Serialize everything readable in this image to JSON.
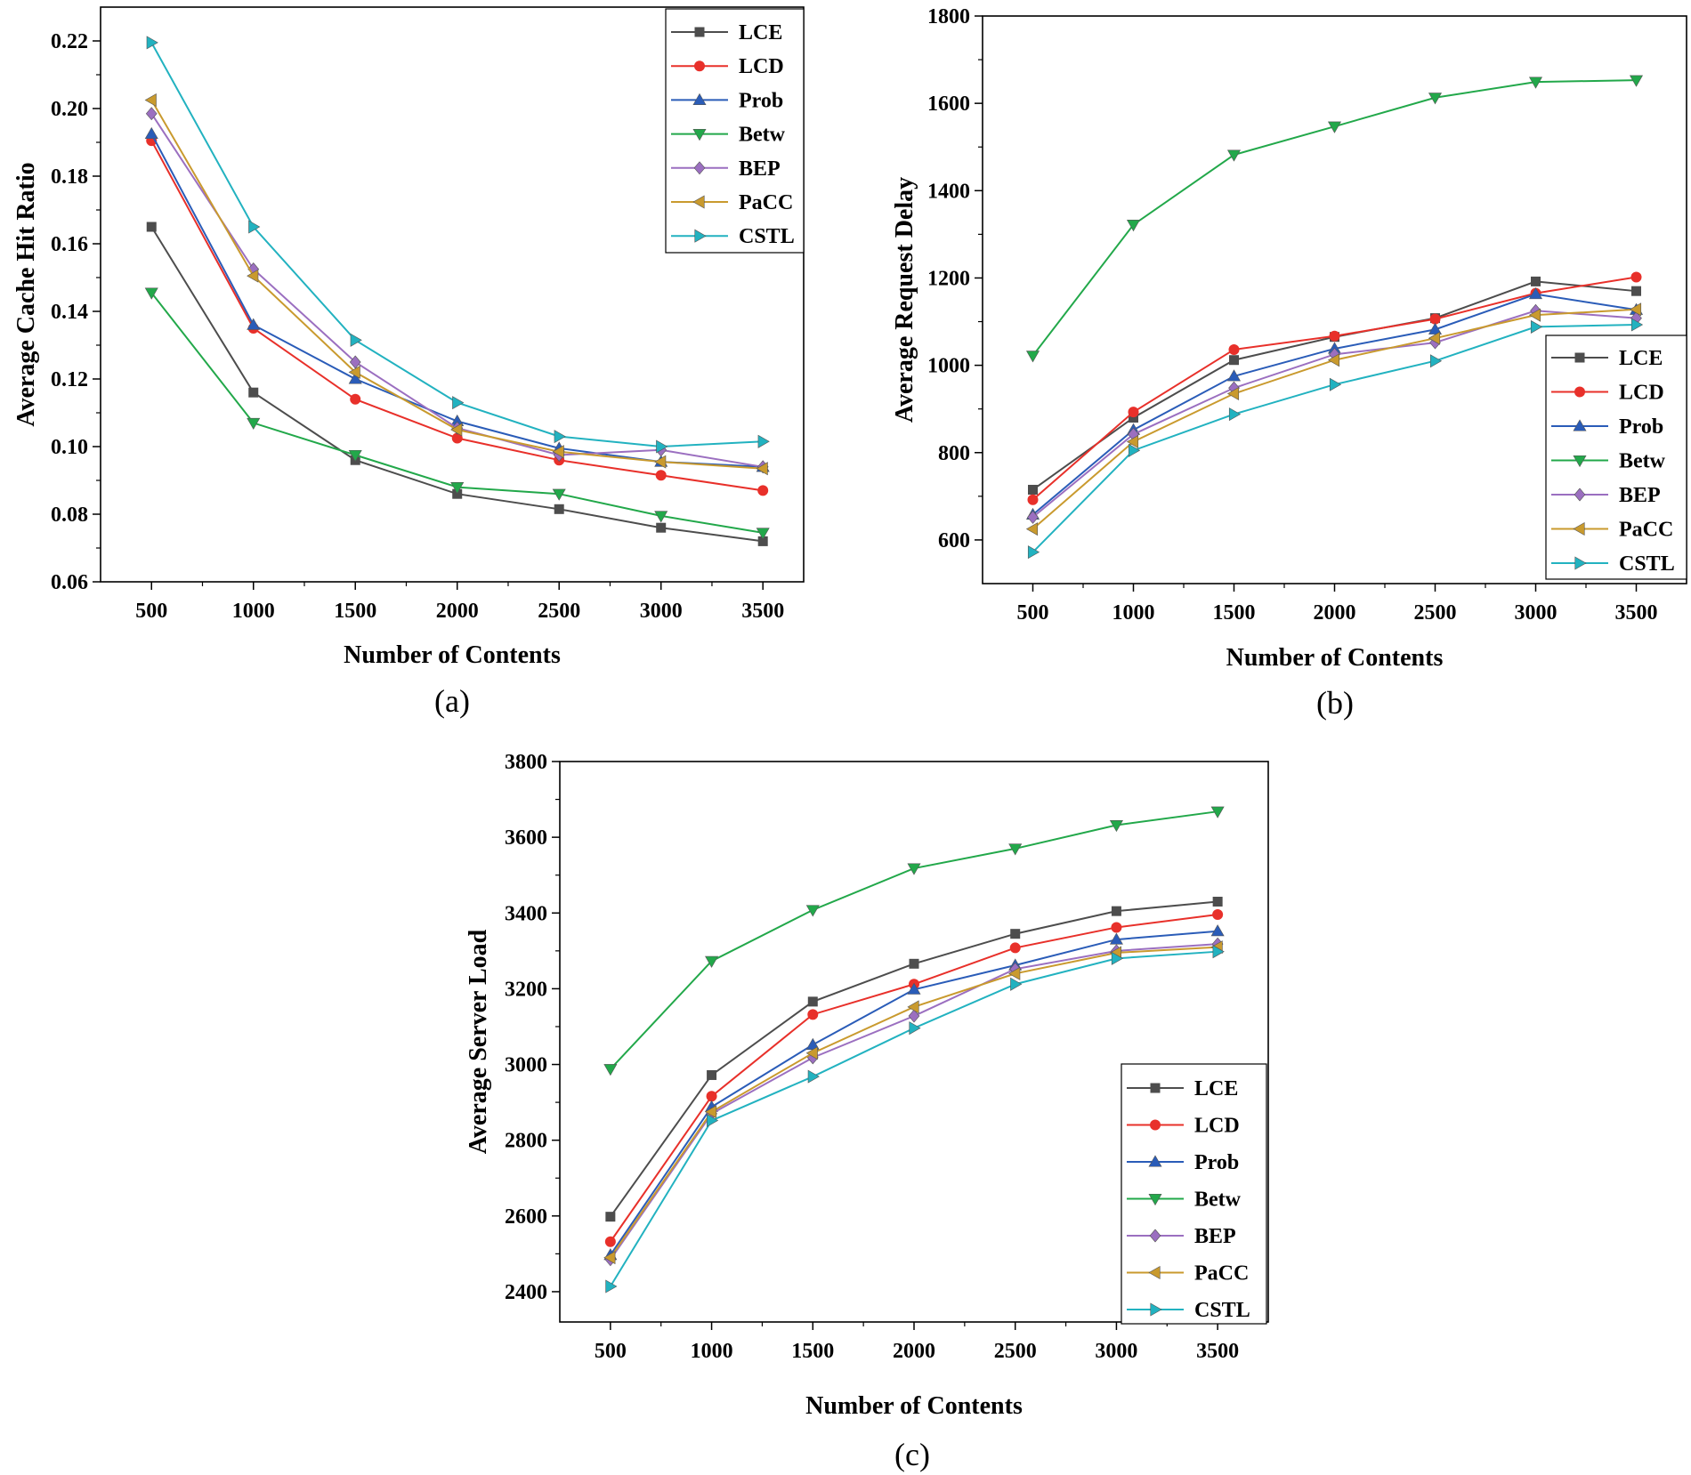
{
  "colors": {
    "LCE": "#4d4d4d",
    "LCD": "#e8302a",
    "Prob": "#2a5cb8",
    "Betw": "#22a84a",
    "BEP": "#9b6fc0",
    "PaCC": "#c99a2e",
    "CSTL": "#22b2c0"
  },
  "chart_data": [
    {
      "type": "line",
      "caption": "(a)",
      "xlabel": "Number of Contents",
      "ylabel": "Average Cache Hit Ratio",
      "x": [
        500,
        1000,
        1500,
        2000,
        2500,
        3000,
        3500
      ],
      "xticks": [
        "500",
        "1000",
        "1500",
        "2000",
        "2500",
        "3000",
        "3500"
      ],
      "xlim": [
        250,
        3700
      ],
      "ylim": [
        0.06,
        0.23
      ],
      "yticks": [
        "0.06",
        "0.08",
        "0.10",
        "0.12",
        "0.14",
        "0.16",
        "0.18",
        "0.20",
        "0.22"
      ],
      "ytick_values": [
        0.06,
        0.08,
        0.1,
        0.12,
        0.14,
        0.16,
        0.18,
        0.2,
        0.22
      ],
      "legend_position": "top-right",
      "series": [
        {
          "name": "LCE",
          "marker": "square",
          "values": [
            0.165,
            0.116,
            0.096,
            0.086,
            0.0815,
            0.076,
            0.072
          ]
        },
        {
          "name": "LCD",
          "marker": "circle",
          "values": [
            0.1905,
            0.135,
            0.114,
            0.1025,
            0.096,
            0.0915,
            0.087
          ]
        },
        {
          "name": "Prob",
          "marker": "triangle-up",
          "values": [
            0.1925,
            0.136,
            0.12,
            0.1075,
            0.0995,
            0.0955,
            0.094
          ]
        },
        {
          "name": "Betw",
          "marker": "triangle-down",
          "values": [
            0.1455,
            0.107,
            0.0975,
            0.088,
            0.086,
            0.0795,
            0.0745
          ]
        },
        {
          "name": "BEP",
          "marker": "diamond",
          "values": [
            0.1985,
            0.1525,
            0.125,
            0.1055,
            0.0975,
            0.099,
            0.094
          ]
        },
        {
          "name": "PaCC",
          "marker": "triangle-left",
          "values": [
            0.2025,
            0.1505,
            0.122,
            0.105,
            0.0985,
            0.0955,
            0.0935
          ]
        },
        {
          "name": "CSTL",
          "marker": "triangle-right",
          "values": [
            0.2195,
            0.165,
            0.1315,
            0.113,
            0.103,
            0.1,
            0.1015
          ]
        }
      ]
    },
    {
      "type": "line",
      "caption": "(b)",
      "xlabel": "Number of Contents",
      "ylabel": "Average Request Delay",
      "x": [
        500,
        1000,
        1500,
        2000,
        2500,
        3000,
        3500
      ],
      "xticks": [
        "500",
        "1000",
        "1500",
        "2000",
        "2500",
        "3000",
        "3500"
      ],
      "xlim": [
        250,
        3750
      ],
      "ylim": [
        500,
        1800
      ],
      "yticks": [
        "600",
        "800",
        "1000",
        "1200",
        "1400",
        "1600",
        "1800"
      ],
      "ytick_values": [
        600,
        800,
        1000,
        1200,
        1400,
        1600,
        1800
      ],
      "legend_position": "bottom-right",
      "series": [
        {
          "name": "LCE",
          "marker": "square",
          "values": [
            715,
            880,
            1012,
            1065,
            1108,
            1192,
            1170
          ]
        },
        {
          "name": "LCD",
          "marker": "circle",
          "values": [
            692,
            893,
            1036,
            1067,
            1106,
            1165,
            1202
          ]
        },
        {
          "name": "Prob",
          "marker": "triangle-up",
          "values": [
            658,
            852,
            975,
            1038,
            1082,
            1163,
            1127
          ]
        },
        {
          "name": "Betw",
          "marker": "triangle-down",
          "values": [
            1022,
            1322,
            1482,
            1547,
            1613,
            1649,
            1653
          ]
        },
        {
          "name": "BEP",
          "marker": "diamond",
          "values": [
            652,
            842,
            948,
            1025,
            1052,
            1125,
            1108
          ]
        },
        {
          "name": "PaCC",
          "marker": "triangle-left",
          "values": [
            625,
            825,
            935,
            1012,
            1062,
            1115,
            1128
          ]
        },
        {
          "name": "CSTL",
          "marker": "triangle-right",
          "values": [
            572,
            805,
            888,
            956,
            1010,
            1088,
            1093
          ]
        }
      ]
    },
    {
      "type": "line",
      "caption": "(c)",
      "xlabel": "Number of Contents",
      "ylabel": "Average Server Load",
      "x": [
        500,
        1000,
        1500,
        2000,
        2500,
        3000,
        3500
      ],
      "xticks": [
        "500",
        "1000",
        "1500",
        "2000",
        "2500",
        "3000",
        "3500"
      ],
      "xlim": [
        250,
        3750
      ],
      "ylim": [
        2320,
        3800
      ],
      "yticks": [
        "2400",
        "2600",
        "2800",
        "3000",
        "3200",
        "3400",
        "3600",
        "3800"
      ],
      "ytick_values": [
        2400,
        2600,
        2800,
        3000,
        3200,
        3400,
        3600,
        3800
      ],
      "legend_position": "bottom-right",
      "series": [
        {
          "name": "LCE",
          "marker": "square",
          "values": [
            2598,
            2972,
            3166,
            3266,
            3345,
            3405,
            3430
          ]
        },
        {
          "name": "LCD",
          "marker": "circle",
          "values": [
            2532,
            2916,
            3132,
            3212,
            3308,
            3362,
            3396
          ]
        },
        {
          "name": "Prob",
          "marker": "triangle-up",
          "values": [
            2497,
            2888,
            3052,
            3198,
            3262,
            3330,
            3352
          ]
        },
        {
          "name": "Betw",
          "marker": "triangle-down",
          "values": [
            2988,
            3273,
            3408,
            3518,
            3570,
            3632,
            3668
          ]
        },
        {
          "name": "BEP",
          "marker": "diamond",
          "values": [
            2485,
            2870,
            3018,
            3128,
            3252,
            3300,
            3318
          ]
        },
        {
          "name": "PaCC",
          "marker": "triangle-left",
          "values": [
            2490,
            2875,
            3030,
            3152,
            3240,
            3295,
            3310
          ]
        },
        {
          "name": "CSTL",
          "marker": "triangle-right",
          "values": [
            2414,
            2852,
            2968,
            3096,
            3212,
            3280,
            3298
          ]
        }
      ]
    }
  ]
}
